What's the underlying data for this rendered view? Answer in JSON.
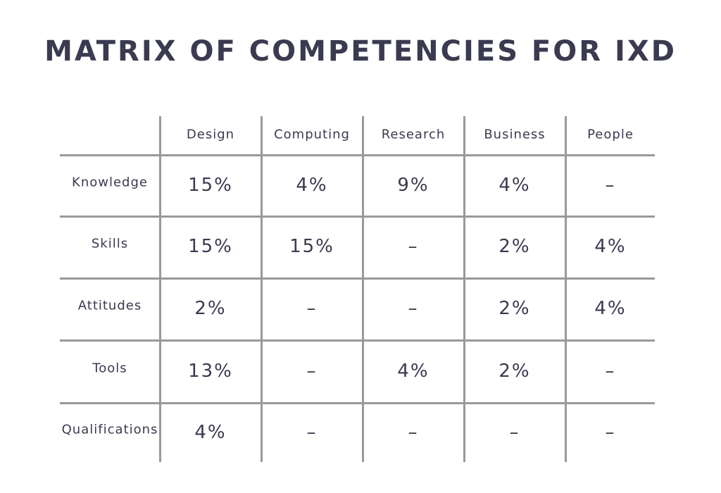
{
  "title": "MATRIX OF COMPETENCIES FOR IXD",
  "colors": {
    "text": "#3a3a50",
    "grid": "#999999",
    "background": "#ffffff"
  },
  "chart_data": {
    "type": "table",
    "title": "MATRIX OF COMPETENCIES FOR IXD",
    "columns": [
      "Design",
      "Computing",
      "Research",
      "Business",
      "People"
    ],
    "rows": [
      "Knowledge",
      "Skills",
      "Attitudes",
      "Tools",
      "Qualifications"
    ],
    "cells": [
      [
        "15%",
        "4%",
        "9%",
        "4%",
        "–"
      ],
      [
        "15%",
        "15%",
        "–",
        "2%",
        "4%"
      ],
      [
        "2%",
        "–",
        "–",
        "2%",
        "4%"
      ],
      [
        "13%",
        "–",
        "4%",
        "2%",
        "–"
      ],
      [
        "4%",
        "–",
        "–",
        "–",
        "–"
      ]
    ]
  }
}
